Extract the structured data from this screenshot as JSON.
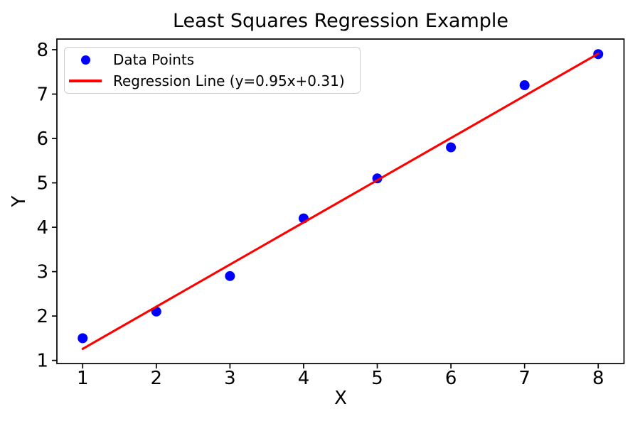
{
  "figure": {
    "background": "#ffffff"
  },
  "chart_data": {
    "type": "scatter",
    "title": "Least Squares Regression Example",
    "xlabel": "X",
    "ylabel": "Y",
    "xlim": [
      0.65,
      8.35
    ],
    "ylim": [
      0.93,
      8.24
    ],
    "xticks": [
      1,
      2,
      3,
      4,
      5,
      6,
      7,
      8
    ],
    "yticks": [
      1,
      2,
      3,
      4,
      5,
      6,
      7,
      8
    ],
    "grid": false,
    "axis_color": "#000000",
    "legend_position": "upper left",
    "series": [
      {
        "name": "Data Points",
        "type": "scatter",
        "color": "#0000ff",
        "x": [
          1,
          2,
          3,
          4,
          5,
          6,
          7,
          8
        ],
        "y": [
          1.5,
          2.1,
          2.9,
          4.2,
          5.1,
          5.8,
          7.2,
          7.9
        ]
      },
      {
        "name": "Regression Line (y=0.95x+0.31)",
        "type": "line",
        "color": "#ff0000",
        "slope": 0.95,
        "intercept": 0.31,
        "x_range": [
          1,
          8
        ]
      }
    ]
  }
}
